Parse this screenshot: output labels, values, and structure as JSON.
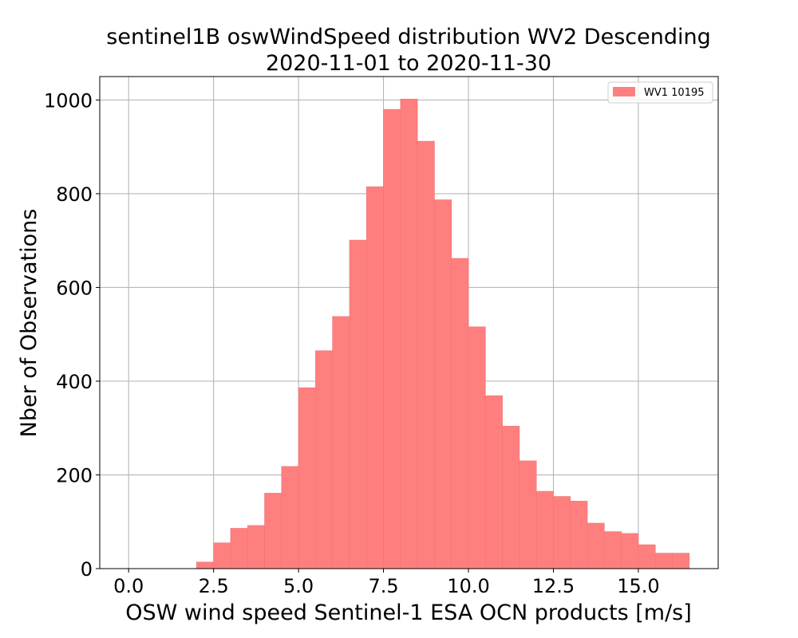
{
  "chart_data": {
    "type": "bar",
    "title": "sentinel1B oswWindSpeed distribution WV2 Descending",
    "subtitle": "2020-11-01 to 2020-11-30",
    "xlabel": "OSW wind speed Sentinel-1 ESA OCN products [m/s]",
    "ylabel": "Nber of Observations",
    "xlim": [
      -0.85,
      17.35
    ],
    "ylim": [
      0,
      1050
    ],
    "x_ticks": [
      0.0,
      2.5,
      5.0,
      7.5,
      10.0,
      12.5,
      15.0
    ],
    "x_tick_labels": [
      "0.0",
      "2.5",
      "5.0",
      "7.5",
      "10.0",
      "12.5",
      "15.0"
    ],
    "y_ticks": [
      0,
      200,
      400,
      600,
      800,
      1000
    ],
    "y_tick_labels": [
      "0",
      "200",
      "400",
      "600",
      "800",
      "1000"
    ],
    "grid": true,
    "bar_color": "#ff7f7f",
    "legend": {
      "placement": "top-right",
      "entries": [
        {
          "label": "WV1 10195",
          "color": "#ff7f7f"
        }
      ]
    },
    "bin_width": 0.5,
    "bin_starts": [
      2.0,
      2.5,
      3.0,
      3.5,
      4.0,
      4.5,
      5.0,
      5.5,
      6.0,
      6.5,
      7.0,
      7.5,
      8.0,
      8.5,
      9.0,
      9.5,
      10.0,
      10.5,
      11.0,
      11.5,
      12.0,
      12.5,
      13.0,
      13.5,
      14.0,
      14.5,
      15.0,
      15.5,
      16.0
    ],
    "values": [
      14,
      55,
      86,
      92,
      161,
      218,
      386,
      465,
      538,
      701,
      815,
      980,
      1002,
      912,
      787,
      662,
      516,
      369,
      304,
      230,
      165,
      154,
      144,
      97,
      79,
      75,
      51,
      33,
      33
    ]
  }
}
